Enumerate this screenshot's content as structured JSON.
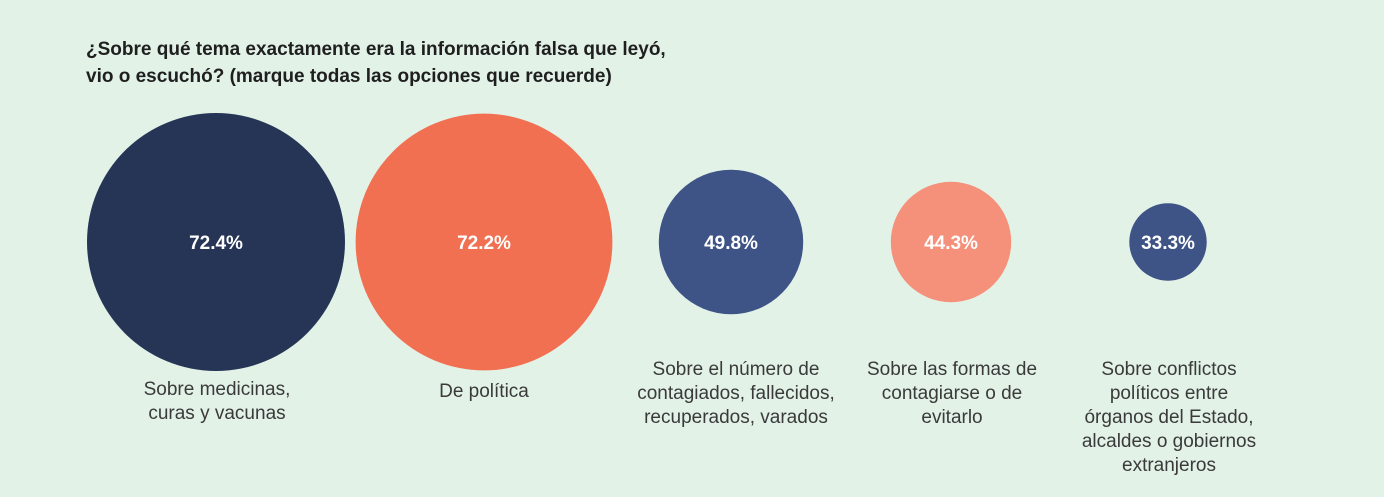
{
  "chart_data": {
    "type": "bubble",
    "title_lines": [
      "¿Sobre qué tema exactamente era la información falsa que leyó,",
      "vio o escuchó? (marque todas las opciones que recuerde)"
    ],
    "unit": "%",
    "points": [
      {
        "value": 72.4,
        "label": "72.4%",
        "category_lines": [
          "Sobre medicinas,",
          "curas y vacunas"
        ],
        "color": "#263556"
      },
      {
        "value": 72.2,
        "label": "72.2%",
        "category_lines": [
          "De política"
        ],
        "color": "#f27052"
      },
      {
        "value": 49.8,
        "label": "49.8%",
        "category_lines": [
          "Sobre el número de",
          "contagiados, fallecidos,",
          "recuperados, varados"
        ],
        "color": "#3e5487"
      },
      {
        "value": 44.3,
        "label": "44.3%",
        "category_lines": [
          "Sobre las formas de",
          "contagiarse o de",
          "evitarlo"
        ],
        "color": "#f5917a"
      },
      {
        "value": 33.3,
        "label": "33.3%",
        "category_lines": [
          "Sobre conflictos",
          "políticos entre",
          "órganos del Estado,",
          "alcaldes o gobiernos",
          "extranjeros"
        ],
        "color": "#3e5487"
      }
    ]
  }
}
